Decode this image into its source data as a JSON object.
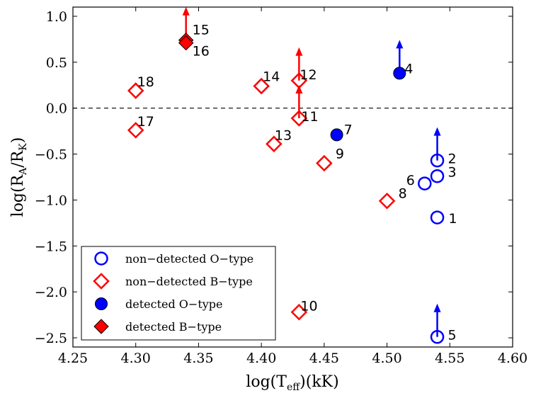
{
  "chart_data": {
    "type": "scatter",
    "xlabel": "log(T_eff)(kK)",
    "ylabel": "log(R_A/R_K)",
    "xlim": [
      4.25,
      4.6
    ],
    "ylim": [
      -2.6,
      1.1
    ],
    "x_ticks": [
      "4.25",
      "4.30",
      "4.35",
      "4.40",
      "4.45",
      "4.50",
      "4.55",
      "4.60"
    ],
    "y_ticks": [
      "1.0",
      "0.5",
      "0.0",
      "−0.5",
      "−1.0",
      "−1.5",
      "−2.0",
      "−2.5"
    ],
    "reference_line": {
      "y": 0.0,
      "style": "dashed"
    },
    "colors": {
      "o_type": "#0000ff",
      "b_type": "#ff0000",
      "b_detected_edge": "#000000"
    },
    "series": [
      {
        "name": "non-detected O-type",
        "marker": "circle-open",
        "points": [
          {
            "label": "1",
            "x": 4.54,
            "y": -1.19,
            "upper_limit": false
          },
          {
            "label": "2",
            "x": 4.54,
            "y": -0.57,
            "upper_limit": true
          },
          {
            "label": "3",
            "x": 4.54,
            "y": -0.74,
            "upper_limit": false
          },
          {
            "label": "5",
            "x": 4.54,
            "y": -2.49,
            "upper_limit": true
          },
          {
            "label": "6",
            "x": 4.53,
            "y": -0.82,
            "upper_limit": false
          }
        ]
      },
      {
        "name": "non-detected B-type",
        "marker": "diamond-open",
        "points": [
          {
            "label": "8",
            "x": 4.5,
            "y": -1.01,
            "upper_limit": false
          },
          {
            "label": "9",
            "x": 4.45,
            "y": -0.6,
            "upper_limit": false
          },
          {
            "label": "10",
            "x": 4.43,
            "y": -2.22,
            "upper_limit": false
          },
          {
            "label": "11",
            "x": 4.43,
            "y": -0.11,
            "upper_limit": true
          },
          {
            "label": "12",
            "x": 4.43,
            "y": 0.3,
            "upper_limit": true
          },
          {
            "label": "13",
            "x": 4.41,
            "y": -0.39,
            "upper_limit": false
          },
          {
            "label": "14",
            "x": 4.4,
            "y": 0.24,
            "upper_limit": false
          },
          {
            "label": "17",
            "x": 4.3,
            "y": -0.24,
            "upper_limit": false
          },
          {
            "label": "18",
            "x": 4.3,
            "y": 0.19,
            "upper_limit": false
          }
        ]
      },
      {
        "name": "detected O-type",
        "marker": "circle-filled",
        "points": [
          {
            "label": "4",
            "x": 4.51,
            "y": 0.38,
            "upper_limit": true
          },
          {
            "label": "7",
            "x": 4.46,
            "y": -0.29,
            "upper_limit": false
          }
        ]
      },
      {
        "name": "detected B-type",
        "marker": "diamond-filled",
        "points": [
          {
            "label": "15",
            "x": 4.34,
            "y": 0.74,
            "upper_limit": true
          },
          {
            "label": "16",
            "x": 4.34,
            "y": 0.71,
            "upper_limit": false
          }
        ]
      }
    ],
    "legend": {
      "position": "lower-left",
      "entries": [
        {
          "text": "non−detected O−type",
          "marker": "circle-open",
          "color": "#0000ff"
        },
        {
          "text": "non−detected B−type",
          "marker": "diamond-open",
          "color": "#ff0000"
        },
        {
          "text": "detected O−type",
          "marker": "circle-filled",
          "color": "#0000ff"
        },
        {
          "text": "detected B−type",
          "marker": "diamond-filled",
          "color": "#ff0000"
        }
      ]
    }
  }
}
